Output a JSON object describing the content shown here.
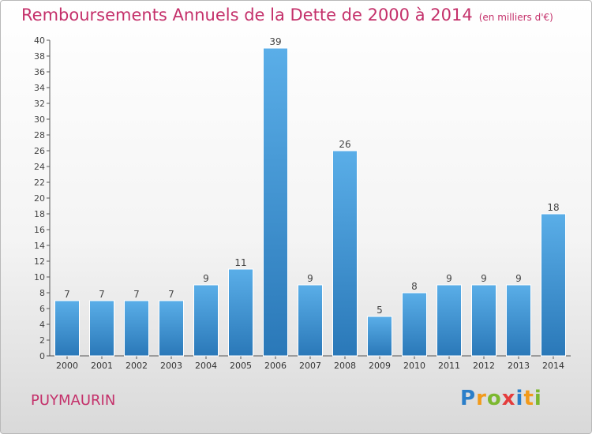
{
  "chart_data": {
    "type": "bar",
    "title": "Remboursements Annuels de la Dette de 2000 à 2014",
    "unit_note": "(en milliers d'€)",
    "categories": [
      "2000",
      "2001",
      "2002",
      "2003",
      "2004",
      "2005",
      "2006",
      "2007",
      "2008",
      "2009",
      "2010",
      "2011",
      "2012",
      "2013",
      "2014"
    ],
    "values": [
      7,
      7,
      7,
      7,
      9,
      11,
      39,
      9,
      26,
      5,
      8,
      9,
      9,
      9,
      18
    ],
    "ylim": [
      0,
      40
    ],
    "ytick_step": 2,
    "grid": false,
    "bar_color_top": "#5aaee8",
    "bar_color_bottom": "#2a78b8"
  },
  "footer": {
    "commune": "PUYMAURIN",
    "logo_text": "Proxiti"
  },
  "colors": {
    "title": "#c4306a",
    "axis": "#555555"
  }
}
